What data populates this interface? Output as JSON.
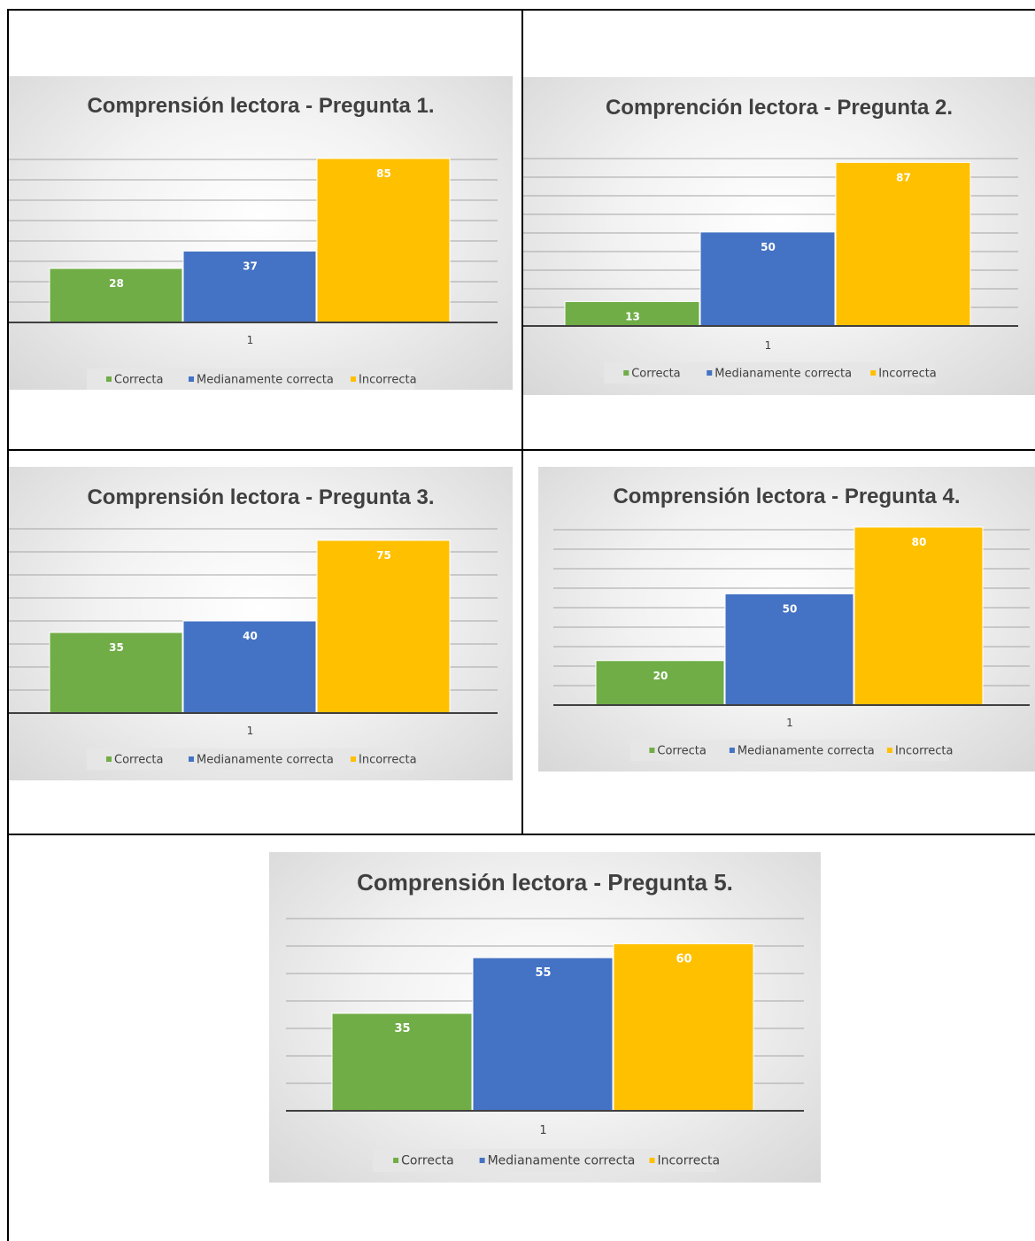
{
  "colors": {
    "correcta": "#70ad47",
    "medianamente": "#4472c4",
    "incorrecta": "#ffc000",
    "gridline": "#a6a6a6",
    "axis": "#404040",
    "legend_bg": "#e6e6e6"
  },
  "chart_data": [
    {
      "type": "bar",
      "title": "Comprensión lectora - Pregunta 1.",
      "categories": [
        "1"
      ],
      "series": [
        {
          "name": "Correcta",
          "values": [
            28
          ]
        },
        {
          "name": "Medianamente correcta",
          "values": [
            37
          ]
        },
        {
          "name": "Incorrecta",
          "values": [
            85
          ]
        }
      ],
      "ylim": [
        0,
        90
      ],
      "grid": true,
      "legend": "bottom"
    },
    {
      "type": "bar",
      "title": "Comprención lectora - Pregunta 2.",
      "categories": [
        "1"
      ],
      "series": [
        {
          "name": "Correcta",
          "values": [
            13
          ]
        },
        {
          "name": "Medianamente correcta",
          "values": [
            50
          ]
        },
        {
          "name": "Incorrecta",
          "values": [
            87
          ]
        }
      ],
      "ylim": [
        0,
        90
      ],
      "grid": true,
      "legend": "bottom"
    },
    {
      "type": "bar",
      "title": "Comprensión lectora - Pregunta 3.",
      "categories": [
        "1"
      ],
      "series": [
        {
          "name": "Correcta",
          "values": [
            35
          ]
        },
        {
          "name": "Medianamente correcta",
          "values": [
            40
          ]
        },
        {
          "name": "Incorrecta",
          "values": [
            75
          ]
        }
      ],
      "ylim": [
        0,
        80
      ],
      "grid": true,
      "legend": "bottom"
    },
    {
      "type": "bar",
      "title": "Comprensión lectora - Pregunta 4.",
      "categories": [
        "1"
      ],
      "series": [
        {
          "name": "Correcta",
          "values": [
            20
          ]
        },
        {
          "name": "Medianamente correcta",
          "values": [
            50
          ]
        },
        {
          "name": "Incorrecta",
          "values": [
            80
          ]
        }
      ],
      "ylim": [
        0,
        80
      ],
      "grid": true,
      "legend": "bottom"
    },
    {
      "type": "bar",
      "title": "Comprensión lectora - Pregunta 5.",
      "categories": [
        "1"
      ],
      "series": [
        {
          "name": "Correcta",
          "values": [
            35
          ]
        },
        {
          "name": "Medianamente correcta",
          "values": [
            55
          ]
        },
        {
          "name": "Incorrecta",
          "values": [
            60
          ]
        }
      ],
      "ylim": [
        0,
        70
      ],
      "grid": true,
      "legend": "bottom"
    }
  ]
}
